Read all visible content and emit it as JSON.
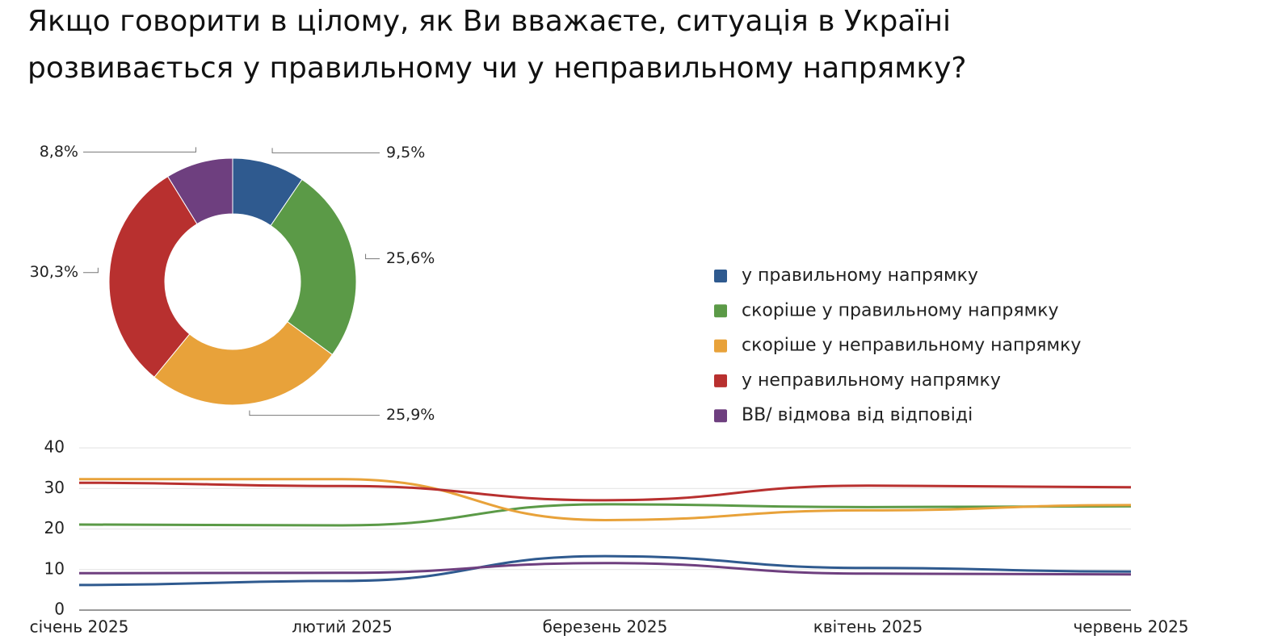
{
  "title": "Якщо говорити в цілому, як Ви вважаєте, ситуація в Україні розвивається у правильному чи у неправильному напрямку?",
  "chart_data": [
    {
      "type": "donut",
      "categories": [
        "у правильному напрямку",
        "скоріше у правильному напрямку",
        "скоріше у неправильному напрямку",
        "у неправильному напрямку",
        "ВВ/ відмова від відповіді"
      ],
      "values": [
        9.5,
        25.6,
        25.9,
        30.3,
        8.8
      ],
      "value_labels": [
        "9,5%",
        "25,6%",
        "25,9%",
        "30,3%",
        "8,8%"
      ],
      "colors": [
        "#2f5a8f",
        "#5b9a47",
        "#e8a23a",
        "#b8302f",
        "#6e3f7f"
      ],
      "legend": "right"
    },
    {
      "type": "line",
      "categories": [
        "січень 2025",
        "лютий 2025",
        "березень 2025",
        "квітень 2025",
        "червень 2025"
      ],
      "series": [
        {
          "color": "#2f5a8f",
          "values": [
            6.2,
            7.2,
            13.3,
            10.4,
            9.5
          ]
        },
        {
          "color": "#5b9a47",
          "values": [
            21.1,
            20.9,
            26.1,
            25.4,
            25.6
          ]
        },
        {
          "color": "#e8a23a",
          "values": [
            32.3,
            32.3,
            22.2,
            24.6,
            25.9
          ]
        },
        {
          "color": "#b8302f",
          "values": [
            31.4,
            30.6,
            27.1,
            30.7,
            30.3
          ]
        },
        {
          "color": "#6e3f7f",
          "values": [
            9.1,
            9.2,
            11.6,
            9.0,
            8.8
          ]
        }
      ],
      "ylim": [
        0,
        40
      ],
      "yticks": [
        0,
        10,
        20,
        30,
        40
      ],
      "grid": true
    }
  ]
}
